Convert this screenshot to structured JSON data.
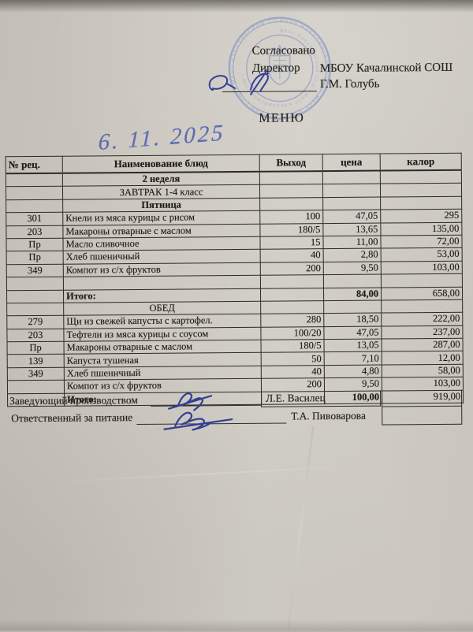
{
  "document": {
    "approval": {
      "agreed": "Согласовано",
      "role": "Директор",
      "school": "МБОУ Качалинской СОШ",
      "person": "Г.М. Голубь"
    },
    "title": "МЕНЮ",
    "handwritten_date": "6. 11. 2025"
  },
  "table": {
    "columns": [
      "№ рец.",
      "Наименование блюд",
      "Выход",
      "цена",
      "калор"
    ],
    "rows": [
      {
        "type": "info",
        "name": "2 неделя",
        "bold": true
      },
      {
        "type": "info",
        "name": "ЗАВТРАК 1-4 класс",
        "bold": false
      },
      {
        "type": "info",
        "name": "Пятница",
        "bold": true
      },
      {
        "type": "dish",
        "num": "301",
        "name": "Кнели из мяса курицы с рисом",
        "out": "100",
        "price": "47,05",
        "kcal": "295"
      },
      {
        "type": "dish",
        "num": "203",
        "name": "Макароны отварные с маслом",
        "out": "180/5",
        "price": "13,65",
        "kcal": "135,00"
      },
      {
        "type": "dish",
        "num": "Пр",
        "name": "Масло сливочное",
        "out": "15",
        "price": "11,00",
        "kcal": "72,00"
      },
      {
        "type": "dish",
        "num": "Пр",
        "name": "Хлеб пшеничный",
        "out": "40",
        "price": "2,80",
        "kcal": "53,00"
      },
      {
        "type": "dish",
        "num": "349",
        "name": "Компот из с/х фруктов",
        "out": "200",
        "price": "9,50",
        "kcal": "103,00"
      },
      {
        "type": "empty"
      },
      {
        "type": "total",
        "name": "Итого:",
        "price": "84,00",
        "kcal": "658,00"
      },
      {
        "type": "info",
        "name": "ОБЕД",
        "bold": false
      },
      {
        "type": "dish",
        "num": "279",
        "name": "Щи из свежей капусты с картофел.",
        "out": "280",
        "price": "18,50",
        "kcal": "222,00",
        "kcalBold": true
      },
      {
        "type": "dish",
        "num": "203",
        "name": "Тефтели из мяса курицы с соусом",
        "out": "100/20",
        "price": "47,05",
        "kcal": "237,00"
      },
      {
        "type": "dish",
        "num": "Пр",
        "name": "Макароны отварные с маслом",
        "out": "180/5",
        "price": "13,05",
        "kcal": "287,00"
      },
      {
        "type": "dish",
        "num": "139",
        "name": "Капуста тушеная",
        "out": "50",
        "price": "7,10",
        "kcal": "12,00"
      },
      {
        "type": "dish",
        "num": "349",
        "name": "Хлеб пшеничный",
        "out": "40",
        "price": "4,80",
        "kcal": "58,00"
      },
      {
        "type": "dish",
        "num": "",
        "name": "Компот из с/х фруктов",
        "out": "200",
        "price": "9,50",
        "kcal": "103,00"
      },
      {
        "type": "total",
        "name": "Итого:",
        "price": "100,00",
        "kcal": "919,00"
      }
    ]
  },
  "footer": {
    "rows": [
      {
        "role": "Заведующий производством",
        "person": "Л.Е. Василец"
      },
      {
        "role": "Ответственный за питание",
        "person": "Т.А. Пивоварова"
      }
    ]
  },
  "colors": {
    "paper": "#cdc9c1",
    "ink": "#26241f",
    "stamp_blue": "#7487bf",
    "pen_blue": "#5b6cb5",
    "signature_ink": "#333e93"
  }
}
